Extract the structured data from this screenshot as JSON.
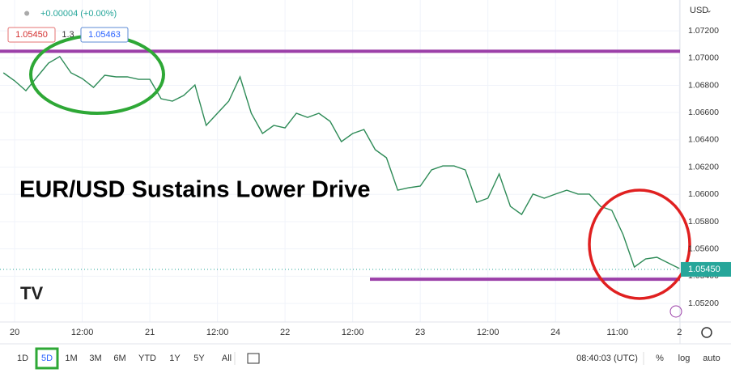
{
  "chart_data": {
    "type": "line",
    "title": "EUR/USD Sustains Lower Drive",
    "header": {
      "change": "+0.00004 (+0.00%)",
      "bid": "1.05450",
      "spread": "1.3",
      "ask": "1.05463",
      "currency": "USD"
    },
    "toolbar": {
      "ranges": [
        "1D",
        "5D",
        "1M",
        "3M",
        "6M",
        "YTD",
        "1Y",
        "5Y",
        "All"
      ],
      "clock": "08:40:03 (UTC)",
      "percent": "%",
      "log": "log",
      "auto": "auto"
    },
    "x": [
      -2,
      0,
      2,
      4,
      6,
      8,
      10,
      12,
      14,
      16,
      18,
      20,
      22,
      24,
      26,
      28,
      30,
      32,
      34,
      36,
      38,
      40,
      42,
      44,
      46,
      48,
      50,
      52,
      54,
      56,
      58,
      60,
      62,
      64,
      66,
      68,
      70,
      72,
      74,
      76,
      78,
      80,
      82,
      84,
      86,
      88,
      90,
      92,
      94,
      96,
      98,
      100,
      102,
      104,
      106,
      108,
      110,
      112,
      114,
      116,
      118
    ],
    "series": [
      {
        "name": "EUR/USD",
        "color": "#2e8b57",
        "values": [
          1.06892,
          1.06833,
          1.06761,
          1.06862,
          1.06963,
          1.07011,
          1.06892,
          1.0685,
          1.06785,
          1.06874,
          1.06862,
          1.06862,
          1.06844,
          1.06844,
          1.06702,
          1.06684,
          1.06726,
          1.06803,
          1.06506,
          1.06595,
          1.06684,
          1.06862,
          1.06595,
          1.06447,
          1.06506,
          1.06488,
          1.06595,
          1.06565,
          1.06595,
          1.06536,
          1.06387,
          1.06447,
          1.06476,
          1.06328,
          1.06269,
          1.06031,
          1.06049,
          1.06061,
          1.0618,
          1.06209,
          1.06209,
          1.0618,
          1.05942,
          1.05972,
          1.0615,
          1.05912,
          1.05853,
          1.06002,
          1.05972,
          1.06002,
          1.06031,
          1.06002,
          1.06002,
          1.05912,
          1.05883,
          1.05705,
          1.05467,
          1.05527,
          1.05539,
          1.05497,
          1.05456
        ]
      }
    ],
    "xlim": [
      -2.6,
      118.1
    ],
    "xticks": [
      {
        "value": 0,
        "label": "20"
      },
      {
        "value": 12,
        "label": "12:00"
      },
      {
        "value": 24,
        "label": "21"
      },
      {
        "value": 36,
        "label": "12:00"
      },
      {
        "value": 48,
        "label": "22"
      },
      {
        "value": 60,
        "label": "12:00"
      },
      {
        "value": 72,
        "label": "23"
      },
      {
        "value": 84,
        "label": "12:00"
      },
      {
        "value": 96,
        "label": "24"
      },
      {
        "value": 107,
        "label": "11:00"
      },
      {
        "value": 118,
        "label": "2"
      }
    ],
    "ylim": [
      1.05064,
      1.07426
    ],
    "yticks": [
      {
        "value": 1.052,
        "label": "1.05200"
      },
      {
        "value": 1.054,
        "label": "1.05400"
      },
      {
        "value": 1.056,
        "label": "1.05600"
      },
      {
        "value": 1.058,
        "label": "1.05800"
      },
      {
        "value": 1.06,
        "label": "1.06000"
      },
      {
        "value": 1.062,
        "label": "1.06200"
      },
      {
        "value": 1.064,
        "label": "1.06400"
      },
      {
        "value": 1.066,
        "label": "1.06600"
      },
      {
        "value": 1.068,
        "label": "1.06800"
      },
      {
        "value": 1.07,
        "label": "1.07000"
      },
      {
        "value": 1.072,
        "label": "1.07200"
      }
    ],
    "last_price": {
      "value": 1.0545,
      "label": "1.05450"
    },
    "reference_lines": [
      {
        "value": 1.0705,
        "color": "#9b3fa8"
      },
      {
        "value": 1.05378,
        "color": "#9b3fa8"
      }
    ],
    "grid": true
  }
}
